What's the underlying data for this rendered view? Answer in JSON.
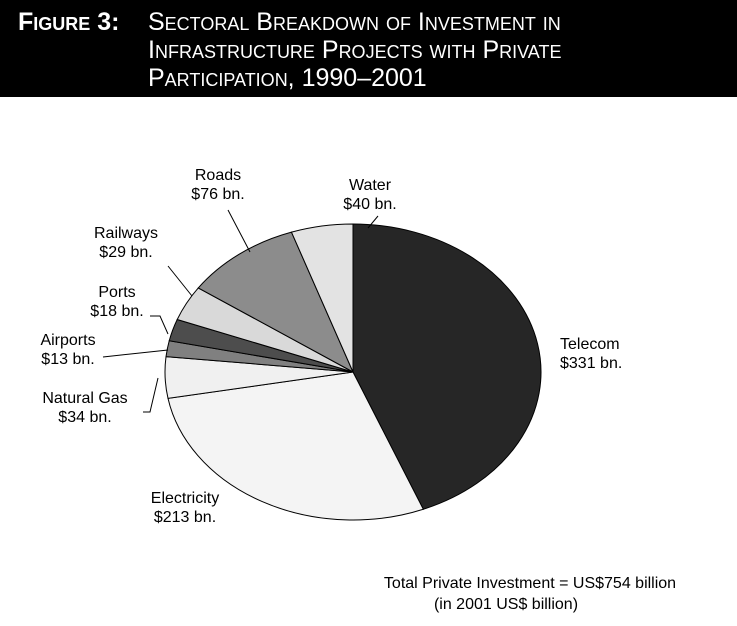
{
  "chart_data": {
    "type": "pie",
    "figure_label": "Figure 3:",
    "title": "Sectoral Breakdown of Investment in Infrastructure Projects with Private Participation, 1990–2001",
    "categories": [
      "Telecom",
      "Electricity",
      "Natural Gas",
      "Airports",
      "Ports",
      "Railways",
      "Roads",
      "Water"
    ],
    "values": [
      331,
      213,
      34,
      13,
      18,
      29,
      76,
      40
    ],
    "value_labels": [
      "$331 bn.",
      "$213 bn.",
      "$34 bn.",
      "$13 bn.",
      "$18 bn.",
      "$29 bn.",
      "$76 bn.",
      "$40 bn."
    ],
    "colors": [
      "#262626",
      "#f4f4f4",
      "#f0f0f0",
      "#808080",
      "#4d4d4d",
      "#d9d9d9",
      "#8c8c8c",
      "#e3e3e3"
    ],
    "annotations": [
      "Total Private Investment = US$754 billion",
      "(in 2001 US$ billion)"
    ]
  }
}
